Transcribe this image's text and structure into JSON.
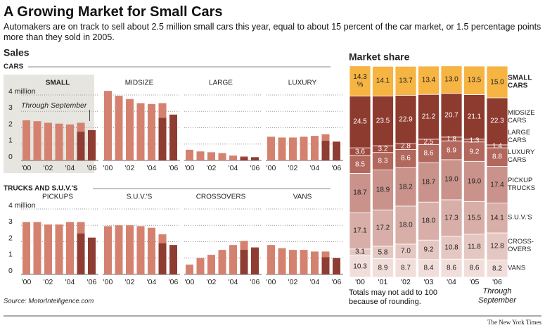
{
  "header": {
    "title": "A Growing Market for Small Cars",
    "subtitle": "Automakers are on track to sell about 2.5 million small cars this year, equal to about 15 percent of the car market, or 1.5 percentage points more than they sold in 2005.",
    "sales_label": "Sales",
    "cars_label": "CARS",
    "trucks_label": "TRUCKS AND S.U.V.'S",
    "source": "Source: MotorIntelligence.com",
    "credit": "The New York Times"
  },
  "chart_data": [
    {
      "type": "bar",
      "title": "SMALL",
      "categories": [
        "'00",
        null,
        "'02",
        null,
        "'04",
        null,
        "'06"
      ],
      "ylim": [
        0,
        4.3
      ],
      "yticks": [
        0,
        1,
        2,
        3,
        {
          "value": 4,
          "label": "4 million"
        }
      ],
      "grid": true,
      "annotation": "Through September",
      "series": [
        {
          "color": "#d4826f",
          "values": [
            2.45,
            2.4,
            2.3,
            2.25,
            2.2,
            2.3,
            null
          ]
        },
        {
          "color": "#8f3d33",
          "values": [
            null,
            null,
            null,
            null,
            null,
            1.75,
            1.85
          ]
        }
      ]
    },
    {
      "type": "bar",
      "title": "MIDSIZE",
      "categories": [
        "'00",
        null,
        "'02",
        null,
        "'04",
        null,
        "'06"
      ],
      "ylim": [
        0,
        4.3
      ],
      "grid": true,
      "series": [
        {
          "color": "#d4826f",
          "values": [
            4.25,
            3.95,
            3.75,
            3.5,
            3.45,
            3.5,
            null
          ]
        },
        {
          "color": "#8f3d33",
          "values": [
            null,
            null,
            null,
            null,
            null,
            2.6,
            2.8
          ]
        }
      ]
    },
    {
      "type": "bar",
      "title": "LARGE",
      "categories": [
        "'00",
        null,
        "'02",
        null,
        "'04",
        null,
        "'06"
      ],
      "ylim": [
        0,
        4.3
      ],
      "grid": true,
      "series": [
        {
          "color": "#d4826f",
          "values": [
            0.65,
            0.55,
            0.5,
            0.45,
            0.3,
            0.25,
            null
          ]
        },
        {
          "color": "#8f3d33",
          "values": [
            null,
            null,
            null,
            null,
            null,
            0.2,
            0.2
          ]
        }
      ]
    },
    {
      "type": "bar",
      "title": "LUXURY",
      "categories": [
        "'00",
        null,
        "'02",
        null,
        "'04",
        null,
        "'06"
      ],
      "ylim": [
        0,
        4.3
      ],
      "grid": true,
      "series": [
        {
          "color": "#d4826f",
          "values": [
            1.45,
            1.4,
            1.4,
            1.45,
            1.5,
            1.6,
            null
          ]
        },
        {
          "color": "#8f3d33",
          "values": [
            null,
            null,
            null,
            null,
            null,
            1.2,
            1.15
          ]
        }
      ]
    },
    {
      "type": "bar",
      "title": "PICKUPS",
      "categories": [
        "'00",
        null,
        "'02",
        null,
        "'04",
        null,
        "'06"
      ],
      "ylim": [
        0,
        4.3
      ],
      "yticks": [
        0,
        1,
        2,
        3,
        {
          "value": 4,
          "label": "4 million"
        }
      ],
      "grid": true,
      "series": [
        {
          "color": "#d4826f",
          "values": [
            3.2,
            3.2,
            3.05,
            3.05,
            3.2,
            3.2,
            null
          ]
        },
        {
          "color": "#8f3d33",
          "values": [
            null,
            null,
            null,
            null,
            null,
            2.5,
            2.25
          ]
        }
      ]
    },
    {
      "type": "bar",
      "title": "S.U.V.'S",
      "categories": [
        "'00",
        null,
        "'02",
        null,
        "'04",
        null,
        "'06"
      ],
      "ylim": [
        0,
        4.3
      ],
      "grid": true,
      "series": [
        {
          "color": "#d4826f",
          "values": [
            2.95,
            3.0,
            3.0,
            2.95,
            2.85,
            2.45,
            null
          ]
        },
        {
          "color": "#8f3d33",
          "values": [
            null,
            null,
            null,
            null,
            null,
            1.9,
            1.8
          ]
        }
      ]
    },
    {
      "type": "bar",
      "title": "CROSSOVERS",
      "categories": [
        "'00",
        null,
        "'02",
        null,
        "'04",
        null,
        "'06"
      ],
      "ylim": [
        0,
        4.3
      ],
      "grid": true,
      "series": [
        {
          "color": "#d4826f",
          "values": [
            0.6,
            1.0,
            1.2,
            1.5,
            1.8,
            2.05,
            null
          ]
        },
        {
          "color": "#8f3d33",
          "values": [
            null,
            null,
            null,
            null,
            null,
            1.5,
            1.65
          ]
        }
      ]
    },
    {
      "type": "bar",
      "title": "VANS",
      "categories": [
        "'00",
        null,
        "'02",
        null,
        "'04",
        null,
        "'06"
      ],
      "ylim": [
        0,
        4.3
      ],
      "grid": true,
      "series": [
        {
          "color": "#d4826f",
          "values": [
            1.8,
            1.6,
            1.5,
            1.5,
            1.4,
            1.4,
            null
          ]
        },
        {
          "color": "#8f3d33",
          "values": [
            null,
            null,
            null,
            null,
            null,
            1.05,
            1.0
          ]
        }
      ]
    },
    {
      "type": "stacked_bar",
      "title": "Market share",
      "categories": [
        "'00",
        "'01",
        "'02",
        "'03",
        "'04",
        "'05",
        "'06"
      ],
      "annotation": "Through September",
      "note": "Totals may not add to 100 because of rounding.",
      "series": [
        {
          "name": "SMALL CARS",
          "color": "#f6b443",
          "values": [
            14.3,
            14.1,
            13.7,
            13.4,
            13.0,
            13.5,
            15.0
          ],
          "value_labels": [
            "14.3 %",
            "14.1",
            "13.7",
            "13.4",
            "13.0",
            "13.5",
            "15.0"
          ]
        },
        {
          "name": "MIDSIZE CARS",
          "color": "#8e3b2f",
          "values": [
            24.5,
            23.5,
            22.9,
            21.2,
            20.7,
            21.1,
            22.3
          ],
          "value_labels": [
            "24.5",
            "23.5",
            "22.9",
            "21.2",
            "20.7",
            "21.1",
            "22.3"
          ]
        },
        {
          "name": "LARGE CARS",
          "color": "#a14c40",
          "values": [
            3.6,
            3.2,
            2.8,
            2.5,
            1.8,
            1.3,
            1.4
          ],
          "value_labels": [
            "3.6",
            "3.2",
            "2.8",
            "2.5",
            "1.8",
            "1.3",
            "1.4"
          ]
        },
        {
          "name": "LUXURY CARS",
          "color": "#b2685d",
          "values": [
            8.5,
            8.3,
            8.6,
            8.6,
            8.9,
            9.2,
            8.8
          ],
          "value_labels": [
            "8.5",
            "8.3",
            "8.6",
            "8.6",
            "8.9",
            "9.2",
            "8.8"
          ]
        },
        {
          "name": "PICKUP TRUCKS",
          "color": "#c9938c",
          "values": [
            18.7,
            18.9,
            18.2,
            18.7,
            19.0,
            19.0,
            17.4
          ],
          "value_labels": [
            "18.7",
            "18.9",
            "18.2",
            "18.7",
            "19.0",
            "19.0",
            "17.4"
          ]
        },
        {
          "name": "S.U.V.'S",
          "color": "#d8aea8",
          "values": [
            17.1,
            17.2,
            18.0,
            18.0,
            17.3,
            15.5,
            14.1
          ],
          "value_labels": [
            "17.1",
            "17.2",
            "18.0",
            "18.0",
            "17.3",
            "15.5",
            "14.1"
          ]
        },
        {
          "name": "CROSS-OVERS",
          "color": "#e5c7c2",
          "values": [
            3.1,
            5.8,
            7.0,
            9.2,
            10.8,
            11.8,
            12.8
          ],
          "value_labels": [
            "3.1",
            "5.8",
            "7.0",
            "9.2",
            "10.8",
            "11.8",
            "12.8"
          ]
        },
        {
          "name": "VANS",
          "color": "#f1dedb",
          "values": [
            10.3,
            8.9,
            8.7,
            8.4,
            8.6,
            8.6,
            8.2
          ],
          "value_labels": [
            "10.3",
            "8.9",
            "8.7",
            "8.4",
            "8.6",
            "8.6",
            "8.2"
          ]
        }
      ]
    }
  ]
}
